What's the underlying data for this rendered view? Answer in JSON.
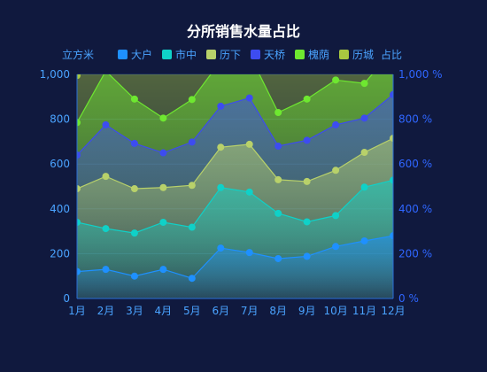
{
  "chart_data": {
    "type": "area",
    "title": "分所销售水量占比",
    "ylabel_left": "立方米",
    "ylabel_right": "占比",
    "categories": [
      "1月",
      "2月",
      "3月",
      "4月",
      "5月",
      "6月",
      "7月",
      "8月",
      "9月",
      "10月",
      "11月",
      "12月"
    ],
    "y_left": {
      "min": 0,
      "max": 1000,
      "ticks": [
        "0",
        "200",
        "400",
        "600",
        "800",
        "1,000"
      ]
    },
    "y_right": {
      "min": 0,
      "max": 1000,
      "ticks": [
        "0 %",
        "200 %",
        "400 %",
        "600 %",
        "800 %",
        "1,000 %"
      ]
    },
    "stacked": false,
    "legend_position": "top-center",
    "series": [
      {
        "name": "大户",
        "color": "#1e90ff",
        "values": [
          120,
          130,
          100,
          130,
          90,
          225,
          205,
          178,
          188,
          232,
          257,
          280
        ]
      },
      {
        "name": "市中",
        "color": "#0fd1c8",
        "values": [
          340,
          312,
          292,
          340,
          318,
          495,
          475,
          380,
          342,
          370,
          497,
          528
        ]
      },
      {
        "name": "历下",
        "color": "#b8d16a",
        "values": [
          490,
          545,
          490,
          495,
          505,
          675,
          688,
          530,
          522,
          572,
          652,
          715
        ]
      },
      {
        "name": "天桥",
        "color": "#3d4cf0",
        "values": [
          640,
          775,
          692,
          650,
          698,
          858,
          895,
          680,
          706,
          775,
          805,
          910
        ]
      },
      {
        "name": "槐荫",
        "color": "#6ee830",
        "values": [
          785,
          1015,
          890,
          805,
          888,
          1060,
          1090,
          830,
          890,
          975,
          960,
          1110
        ]
      },
      {
        "name": "历城",
        "color": "#a8c840",
        "values": [
          995,
          1240,
          1190,
          1120,
          1190,
          1310,
          1290,
          1160,
          1200,
          1280,
          1260,
          1330
        ]
      }
    ]
  }
}
